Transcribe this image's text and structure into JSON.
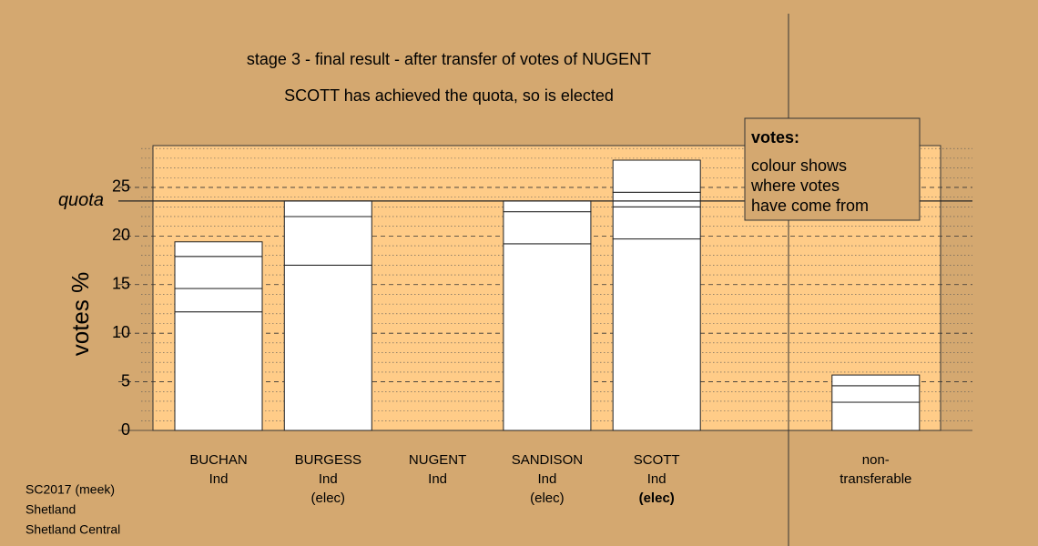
{
  "chart_data": {
    "type": "stacked_bar",
    "title": "stage 3 - final result - after transfer of votes of NUGENT",
    "subtitle": "SCOTT has achieved the quota, so is elected",
    "y_label": "votes %",
    "categories": [
      [
        "BUCHAN",
        "Ind"
      ],
      [
        "BURGESS",
        "Ind",
        "(elec)"
      ],
      [
        "NUGENT",
        "Ind"
      ],
      [
        "SANDISON",
        "Ind",
        "(elec)"
      ],
      [
        "SCOTT",
        "Ind",
        "(elec)"
      ],
      [
        "non-",
        "transferable"
      ]
    ],
    "segments": [
      [
        12.2,
        2.4,
        3.3,
        1.5
      ],
      [
        17.0,
        5.0,
        1.6
      ],
      [],
      [
        19.2,
        3.3,
        1.1
      ],
      [
        19.7,
        3.3,
        1.5,
        3.3
      ],
      [
        2.9,
        1.7,
        1.1
      ]
    ],
    "highlight": 4,
    "color": "#ffffff",
    "ylim": [
      0,
      29.3
    ],
    "yticks": [
      0,
      5,
      10,
      15,
      20,
      25
    ],
    "minor_yticks": [
      1,
      2,
      3,
      4,
      6,
      7,
      8,
      9,
      11,
      12,
      13,
      14,
      16,
      17,
      18,
      19,
      21,
      22,
      23,
      24,
      26,
      27,
      28,
      29
    ],
    "quota": {
      "value": 23.6,
      "label": "quota"
    },
    "legend": {
      "title": "votes:",
      "lines": [
        "colour shows",
        "where votes",
        "have come from"
      ]
    },
    "footnote": [
      "SC2017 (meek)",
      "Shetland",
      "Shetland Central"
    ]
  }
}
